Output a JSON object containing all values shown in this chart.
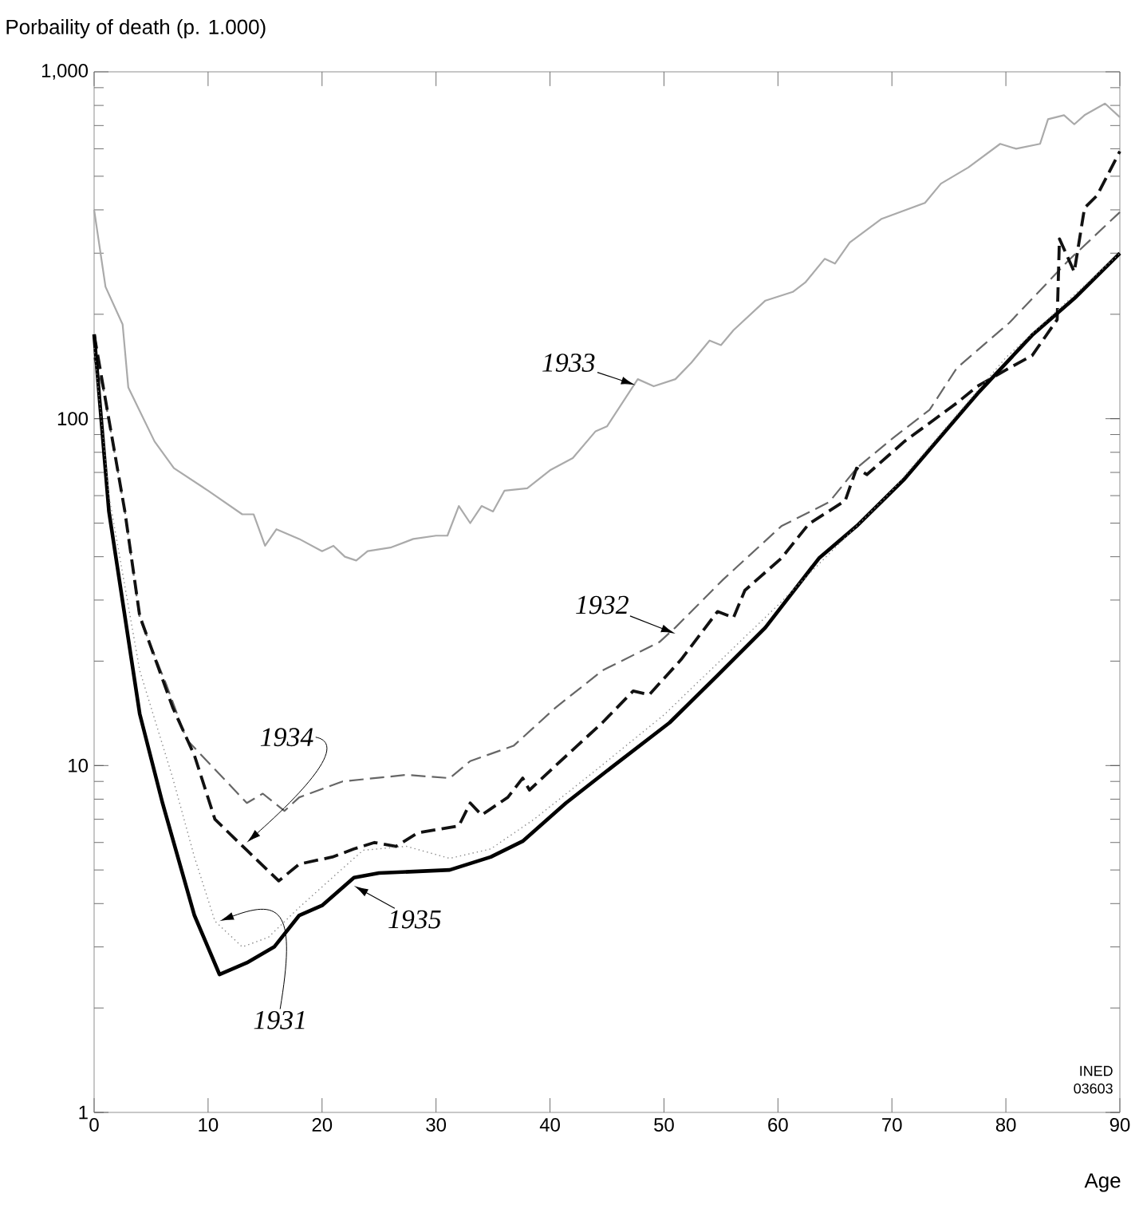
{
  "chart_data": {
    "type": "line",
    "ylabel": "Porbaility of death (p. 1.000)",
    "xlabel": "Age",
    "log": "y",
    "grid": false,
    "marker": "none",
    "xlim": [
      0,
      90
    ],
    "xticks": [
      0,
      10,
      20,
      30,
      40,
      50,
      60,
      70,
      80,
      90
    ],
    "ylim": [
      1,
      1000
    ],
    "yticks": [
      1,
      10,
      100,
      {
        "value": 1000,
        "label": "1,000"
      }
    ],
    "series": [
      {
        "color": "#aaaaaa",
        "line_style": "solid",
        "x": [
          0,
          1,
          2.5,
          3,
          5.3,
          7,
          10,
          13,
          14,
          15,
          16,
          18,
          20,
          21,
          22,
          23,
          24,
          26,
          28,
          30,
          31,
          32,
          33,
          34,
          35,
          36,
          38,
          40,
          42,
          44,
          45,
          47.7,
          49.1,
          51,
          52.4,
          54,
          55,
          56.1,
          58.9,
          61.3,
          62.4,
          64.1,
          65,
          66.3,
          69.1,
          72.9,
          74.3,
          76.7,
          79.5,
          80.9,
          83,
          83.7,
          85.1,
          86,
          86.9,
          88.7,
          90
        ],
        "values": [
          400,
          240,
          187,
          123,
          86,
          72,
          62,
          53,
          53,
          43,
          48,
          45,
          41.5,
          43,
          40,
          39,
          41.5,
          42.5,
          45,
          46,
          46,
          56,
          50,
          56,
          54,
          62,
          63,
          71,
          77,
          92,
          95,
          130,
          124,
          130,
          145,
          168,
          163,
          180,
          219,
          232,
          247,
          289,
          280,
          322,
          377,
          419,
          476,
          530,
          620,
          600,
          620,
          730,
          750,
          706,
          750,
          810,
          740
        ]
      },
      {
        "color": "#666666",
        "line_style": "dashed",
        "x": [
          0,
          0.8,
          2.7,
          4,
          6.4,
          8.1,
          13.4,
          14.8,
          16.7,
          18,
          21.8,
          27.4,
          31.2,
          33,
          36.8,
          40.5,
          44.6,
          49.6,
          51,
          55.2,
          60.3,
          64.5,
          66.9,
          70.1,
          73.3,
          75.7,
          80.3,
          85.5,
          90
        ],
        "values": [
          150,
          122,
          54,
          26.6,
          16.9,
          11.9,
          7.8,
          8.3,
          7.4,
          8.1,
          9.0,
          9.4,
          9.2,
          10.3,
          11.4,
          14.7,
          18.8,
          22.7,
          25,
          34.4,
          49,
          57.5,
          72,
          88,
          106,
          140,
          189,
          286,
          394
        ]
      },
      {
        "color": "#111111",
        "line_style": "dashed",
        "x": [
          0,
          2.7,
          4,
          6.9,
          8.8,
          10.6,
          13.4,
          16.2,
          18,
          20.9,
          22.8,
          24.6,
          26.5,
          28.4,
          32,
          33,
          34,
          36.3,
          37.6,
          38.2,
          40.5,
          44.6,
          47.3,
          48.7,
          51.5,
          54.7,
          56.1,
          57.1,
          60.3,
          62.7,
          65.9,
          66.9,
          67.8,
          71.1,
          75.7,
          77.5,
          80.3,
          82.3,
          84.5,
          84.7,
          86,
          86.9,
          88,
          90
        ],
        "values": [
          175,
          54,
          27,
          14.7,
          10.7,
          7.0,
          5.7,
          4.65,
          5.2,
          5.45,
          5.75,
          6.0,
          5.85,
          6.4,
          6.7,
          7.8,
          7.2,
          8.1,
          9.2,
          8.5,
          10,
          13.3,
          16.4,
          16.0,
          20.2,
          27.8,
          26.7,
          32,
          39.6,
          49.7,
          58,
          72,
          69,
          86,
          111,
          124,
          140,
          152,
          193,
          330,
          265,
          405,
          440,
          590
        ]
      },
      {
        "color": "#000000",
        "line_style": "solid",
        "x": [
          0,
          1.3,
          4,
          6,
          8.8,
          11,
          13.4,
          15.8,
          18,
          20,
          22.8,
          25,
          31.2,
          34.8,
          37.6,
          41.4,
          45.6,
          50.5,
          54.7,
          58.9,
          63.6,
          66.9,
          71.1,
          77.5,
          82.3,
          86,
          90
        ],
        "values": [
          175,
          54,
          14.1,
          7.8,
          3.7,
          2.5,
          2.7,
          3.0,
          3.7,
          3.95,
          4.75,
          4.9,
          5.0,
          5.45,
          6.05,
          7.8,
          10,
          13.3,
          18.2,
          25,
          39.6,
          49,
          67,
          118,
          174,
          222,
          300
        ]
      },
      {
        "color": "#888888",
        "line_style": "dotted",
        "x": [
          0,
          1.3,
          4,
          6.9,
          8.8,
          10.6,
          13,
          15.3,
          18,
          20.9,
          23.6,
          27.4,
          31.2,
          34.8,
          38.6,
          44.2,
          50,
          60,
          70,
          80,
          90
        ],
        "values": [
          160,
          60,
          18.8,
          9.2,
          5.45,
          3.56,
          3.0,
          3.2,
          3.9,
          4.75,
          5.7,
          5.85,
          5.4,
          5.75,
          7.0,
          9.8,
          14,
          29,
          62,
          150,
          300
        ]
      }
    ],
    "annotations": [
      {
        "text": "1933",
        "x": 47.5,
        "y": 125
      },
      {
        "text": "1932",
        "x": 51,
        "y": 24
      },
      {
        "text": "1934",
        "x": 13.4,
        "y": 6.0
      },
      {
        "text": "1935",
        "x": 22.8,
        "y": 4.5
      },
      {
        "text": "1931",
        "x": 11,
        "y": 3.56
      },
      "INED",
      "03603"
    ]
  }
}
